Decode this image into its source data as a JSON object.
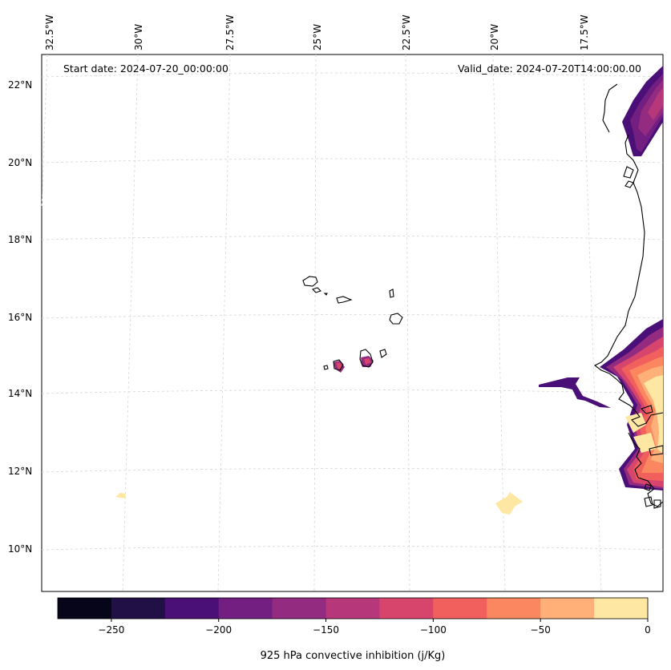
{
  "header": {
    "start_date": "Start date: 2024-07-20_00:00:00",
    "valid_date": "Valid_date: 2024-07-20T14:00:00.00"
  },
  "longitude_labels": [
    "32.5°W",
    "30°W",
    "27.5°W",
    "25°W",
    "22.5°W",
    "20°W",
    "17.5°W"
  ],
  "latitude_labels": [
    "22°N",
    "20°N",
    "18°N",
    "16°N",
    "14°N",
    "12°N",
    "10°N"
  ],
  "colorbar": {
    "label": "925 hPa convective inhibition (j/Kg)",
    "range": [
      -275,
      0
    ],
    "step": 25,
    "tick_labels": [
      "−250",
      "−200",
      "−150",
      "−100",
      "−50",
      "0"
    ],
    "colors": [
      "#06051a",
      "#201046",
      "#4b0f78",
      "#721f81",
      "#932b80",
      "#b6377a",
      "#d8456c",
      "#f1605d",
      "#fb8761",
      "#feb078",
      "#fde7a2"
    ]
  },
  "theme": {
    "coastline": "#000000",
    "gridline": "#d0d0d0"
  }
}
